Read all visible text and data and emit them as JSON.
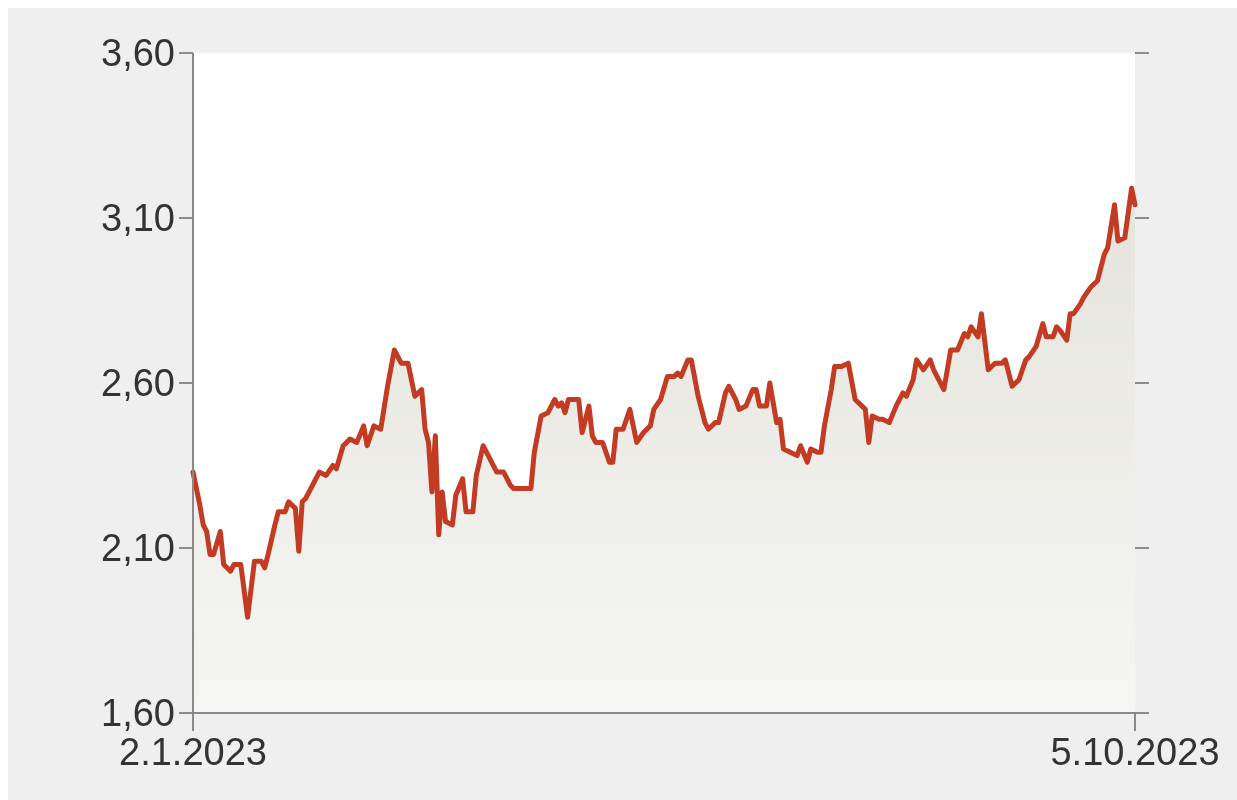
{
  "chart_data": {
    "type": "area",
    "x": [
      "2023-01-02",
      "2023-01-04",
      "2023-01-05",
      "2023-01-06",
      "2023-01-07",
      "2023-01-08",
      "2023-01-10",
      "2023-01-11",
      "2023-01-13",
      "2023-01-14",
      "2023-01-16",
      "2023-01-18",
      "2023-01-20",
      "2023-01-22",
      "2023-01-23",
      "2023-01-24",
      "2023-01-26",
      "2023-01-27",
      "2023-01-29",
      "2023-01-30",
      "2023-02-01",
      "2023-02-02",
      "2023-02-03",
      "2023-02-04",
      "2023-02-06",
      "2023-02-08",
      "2023-02-10",
      "2023-02-12",
      "2023-02-13",
      "2023-02-15",
      "2023-02-17",
      "2023-02-19",
      "2023-02-21",
      "2023-02-22",
      "2023-02-24",
      "2023-02-26",
      "2023-02-28",
      "2023-03-02",
      "2023-03-04",
      "2023-03-06",
      "2023-03-08",
      "2023-03-10",
      "2023-03-11",
      "2023-03-12",
      "2023-03-13",
      "2023-03-14",
      "2023-03-15",
      "2023-03-16",
      "2023-03-17",
      "2023-03-19",
      "2023-03-20",
      "2023-03-22",
      "2023-03-23",
      "2023-03-25",
      "2023-03-26",
      "2023-03-28",
      "2023-03-30",
      "2023-04-01",
      "2023-04-03",
      "2023-04-05",
      "2023-04-06",
      "2023-04-11",
      "2023-04-12",
      "2023-04-14",
      "2023-04-16",
      "2023-04-18",
      "2023-04-19",
      "2023-04-20",
      "2023-04-21",
      "2023-04-22",
      "2023-04-24",
      "2023-04-25",
      "2023-04-26",
      "2023-04-28",
      "2023-04-29",
      "2023-04-30",
      "2023-05-02",
      "2023-05-04",
      "2023-05-05",
      "2023-05-06",
      "2023-05-08",
      "2023-05-10",
      "2023-05-12",
      "2023-05-14",
      "2023-05-16",
      "2023-05-17",
      "2023-05-19",
      "2023-05-21",
      "2023-05-23",
      "2023-05-24",
      "2023-05-25",
      "2023-05-27",
      "2023-05-28",
      "2023-05-30",
      "2023-06-01",
      "2023-06-02",
      "2023-06-04",
      "2023-06-05",
      "2023-06-07",
      "2023-06-08",
      "2023-06-10",
      "2023-06-11",
      "2023-06-13",
      "2023-06-15",
      "2023-06-16",
      "2023-06-17",
      "2023-06-19",
      "2023-06-20",
      "2023-06-22",
      "2023-06-23",
      "2023-06-24",
      "2023-06-26",
      "2023-06-28",
      "2023-06-29",
      "2023-07-01",
      "2023-07-02",
      "2023-07-04",
      "2023-07-05",
      "2023-07-06",
      "2023-07-08",
      "2023-07-09",
      "2023-07-11",
      "2023-07-13",
      "2023-07-15",
      "2023-07-16",
      "2023-07-18",
      "2023-07-19",
      "2023-07-20",
      "2023-07-22",
      "2023-07-23",
      "2023-07-25",
      "2023-07-27",
      "2023-07-29",
      "2023-07-30",
      "2023-08-01",
      "2023-08-02",
      "2023-08-04",
      "2023-08-06",
      "2023-08-07",
      "2023-08-10",
      "2023-08-11",
      "2023-08-12",
      "2023-08-14",
      "2023-08-16",
      "2023-08-17",
      "2023-08-18",
      "2023-08-20",
      "2023-08-21",
      "2023-08-23",
      "2023-08-25",
      "2023-08-27",
      "2023-08-28",
      "2023-08-30",
      "2023-09-01",
      "2023-09-03",
      "2023-09-04",
      "2023-09-06",
      "2023-09-08",
      "2023-09-09",
      "2023-09-11",
      "2023-09-12",
      "2023-09-13",
      "2023-09-15",
      "2023-09-16",
      "2023-09-17",
      "2023-09-19",
      "2023-09-20",
      "2023-09-22",
      "2023-09-24",
      "2023-09-26",
      "2023-09-27",
      "2023-09-29",
      "2023-09-30",
      "2023-10-02",
      "2023-10-04",
      "2023-10-05"
    ],
    "series": [
      {
        "color": "#c23b22",
        "values": [
          2.33,
          2.23,
          2.17,
          2.15,
          2.08,
          2.08,
          2.15,
          2.05,
          2.03,
          2.05,
          2.05,
          1.89,
          2.06,
          2.06,
          2.04,
          2.08,
          2.17,
          2.21,
          2.21,
          2.24,
          2.22,
          2.09,
          2.24,
          2.25,
          2.29,
          2.33,
          2.32,
          2.35,
          2.34,
          2.41,
          2.43,
          2.42,
          2.47,
          2.41,
          2.47,
          2.46,
          2.59,
          2.7,
          2.66,
          2.66,
          2.56,
          2.58,
          2.46,
          2.42,
          2.27,
          2.44,
          2.14,
          2.27,
          2.18,
          2.17,
          2.26,
          2.31,
          2.21,
          2.21,
          2.32,
          2.41,
          2.37,
          2.33,
          2.33,
          2.29,
          2.28,
          2.28,
          2.39,
          2.5,
          2.51,
          2.55,
          2.53,
          2.54,
          2.51,
          2.55,
          2.55,
          2.55,
          2.45,
          2.53,
          2.44,
          2.42,
          2.42,
          2.36,
          2.36,
          2.46,
          2.46,
          2.52,
          2.42,
          2.45,
          2.47,
          2.52,
          2.55,
          2.62,
          2.62,
          2.63,
          2.62,
          2.67,
          2.67,
          2.56,
          2.48,
          2.46,
          2.48,
          2.48,
          2.57,
          2.59,
          2.55,
          2.52,
          2.53,
          2.58,
          2.58,
          2.53,
          2.53,
          2.6,
          2.48,
          2.49,
          2.4,
          2.39,
          2.38,
          2.41,
          2.36,
          2.4,
          2.39,
          2.39,
          2.47,
          2.58,
          2.65,
          2.65,
          2.66,
          2.55,
          2.54,
          2.52,
          2.42,
          2.5,
          2.49,
          2.49,
          2.48,
          2.53,
          2.57,
          2.56,
          2.61,
          2.67,
          2.64,
          2.67,
          2.64,
          2.58,
          2.64,
          2.7,
          2.7,
          2.75,
          2.74,
          2.77,
          2.74,
          2.81,
          2.64,
          2.66,
          2.66,
          2.67,
          2.59,
          2.61,
          2.67,
          2.68,
          2.71,
          2.78,
          2.74,
          2.74,
          2.77,
          2.76,
          2.73,
          2.81,
          2.81,
          2.84,
          2.86,
          2.89,
          2.91,
          2.99,
          3.01,
          3.14,
          3.03,
          3.04,
          3.19,
          3.14
        ]
      }
    ],
    "xlim": [
      "2023-01-02",
      "2023-10-05"
    ],
    "xticks": [
      {
        "value": "2023-01-02",
        "label": "2.1.2023"
      },
      {
        "value": "2023-10-05",
        "label": "5.10.2023"
      }
    ],
    "ylim": [
      1.6,
      3.6
    ],
    "yticks": [
      {
        "value": 1.6,
        "label": "1,60"
      },
      {
        "value": 2.1,
        "label": "2,10"
      },
      {
        "value": 2.6,
        "label": "2,60"
      },
      {
        "value": 3.1,
        "label": "3,10"
      },
      {
        "value": 3.6,
        "label": "3,60"
      }
    ],
    "grid": false
  }
}
